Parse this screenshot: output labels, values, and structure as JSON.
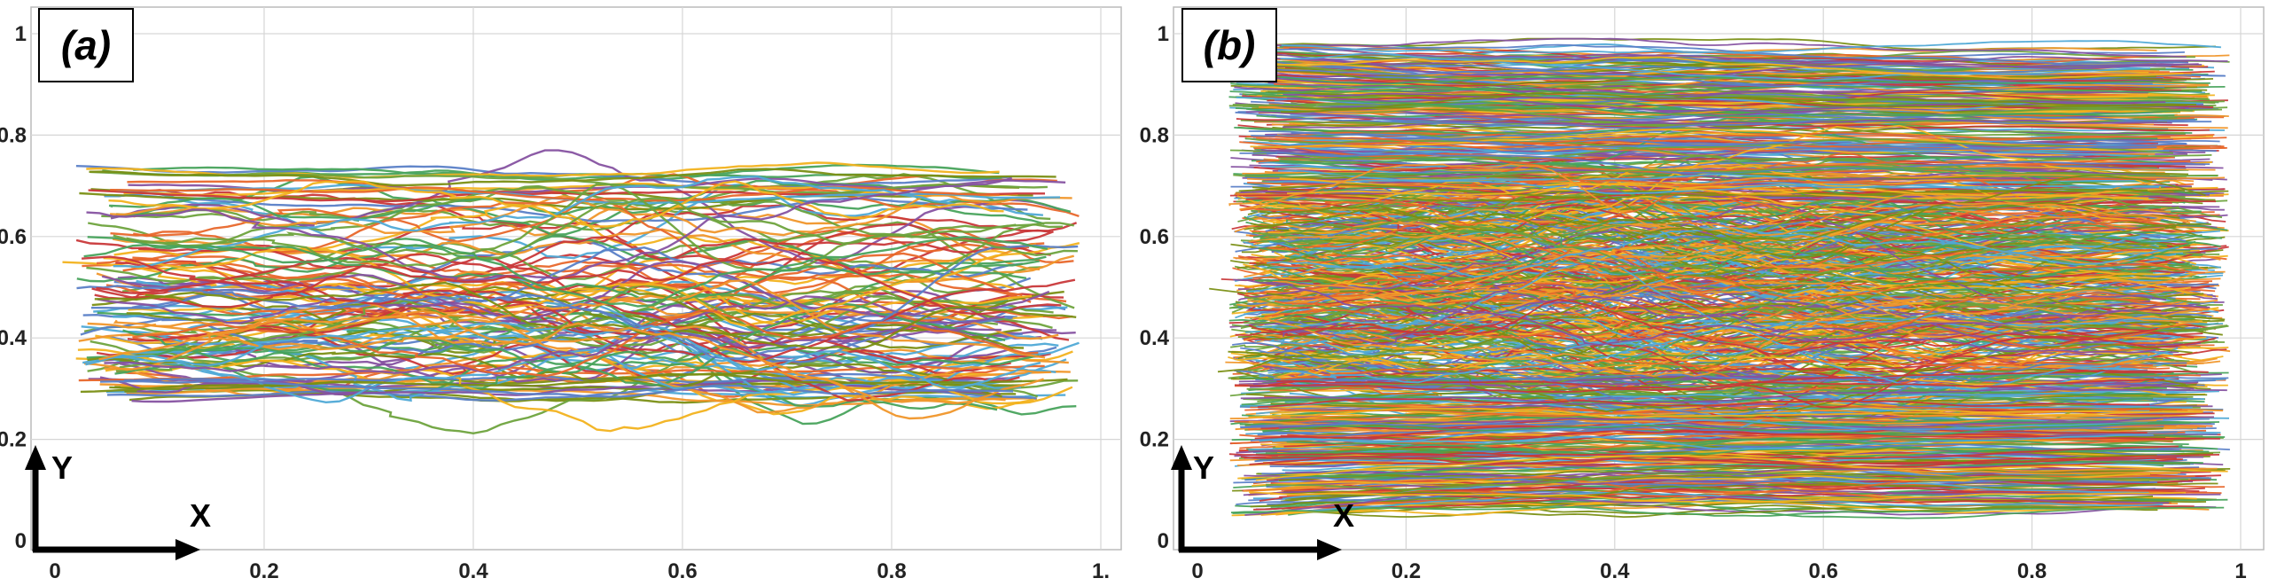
{
  "chart_data": [
    {
      "type": "line",
      "panel_label": "(a)",
      "xlim": [
        0,
        1
      ],
      "ylim": [
        0,
        1
      ],
      "x_ticks": [
        0,
        0.2,
        0.4,
        0.6,
        0.8,
        1
      ],
      "x_tick_labels": [
        "0",
        "0.2",
        "0.4",
        "0.6",
        "0.8",
        "1."
      ],
      "y_ticks": [
        0,
        0.2,
        0.4,
        0.6,
        0.8,
        1
      ],
      "y_tick_labels": [
        "0",
        "0.2",
        "0.4",
        "0.6",
        "0.8",
        "1"
      ],
      "axis_arrow_labels": {
        "x": "X",
        "y": "Y"
      },
      "grid": true,
      "series_description": "particle trajectories",
      "trajectory_count": 130,
      "trajectory_x_range": [
        0.02,
        0.98
      ],
      "trajectory_y_range": [
        0.16,
        0.77
      ],
      "trajectory_start_band": [
        0.27,
        0.74
      ],
      "trajectory_end_band": [
        0.16,
        0.64
      ],
      "seed": 11
    },
    {
      "type": "line",
      "panel_label": "(b)",
      "xlim": [
        0,
        1
      ],
      "ylim": [
        0,
        1
      ],
      "x_ticks": [
        0,
        0.2,
        0.4,
        0.6,
        0.8,
        1
      ],
      "x_tick_labels": [
        "0",
        "0.2",
        "0.4",
        "0.6",
        "0.8",
        "1"
      ],
      "y_ticks": [
        0,
        0.2,
        0.4,
        0.6,
        0.8,
        1
      ],
      "y_tick_labels": [
        "0",
        "0.2",
        "0.4",
        "0.6",
        "0.8",
        "1"
      ],
      "axis_arrow_labels": {
        "x": "X",
        "y": "Y"
      },
      "grid": true,
      "series_description": "particle trajectories",
      "trajectory_count": 900,
      "trajectory_x_range": [
        0.03,
        0.99
      ],
      "trajectory_y_range": [
        0.04,
        0.99
      ],
      "trajectory_start_band": [
        0.05,
        0.98
      ],
      "trajectory_end_band": [
        0.05,
        0.97
      ],
      "seed": 29
    }
  ],
  "palette": [
    "#5a7fc7",
    "#e8672b",
    "#f2b21d",
    "#8652a1",
    "#6ea33d",
    "#4fa9d6",
    "#c9383a",
    "#7a8f14",
    "#48a35c",
    "#f0962a"
  ]
}
